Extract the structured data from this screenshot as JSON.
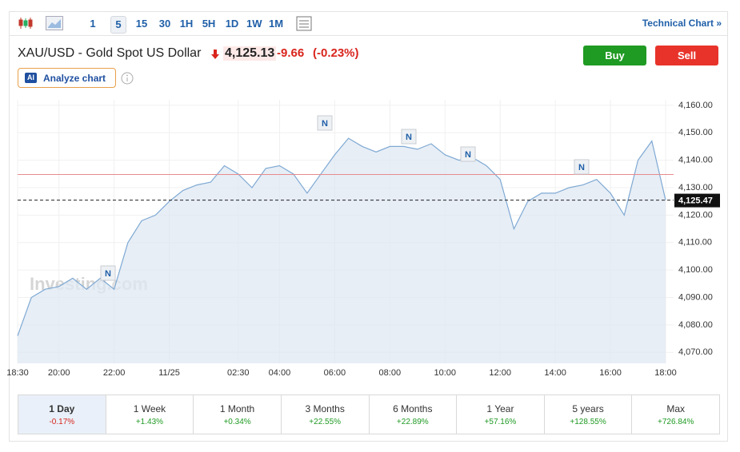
{
  "toolbar": {
    "intervals": [
      "1",
      "5",
      "15",
      "30",
      "1H",
      "5H",
      "1D",
      "1W",
      "1M"
    ],
    "active": "5",
    "link": "Technical Chart »"
  },
  "header": {
    "title": "XAU/USD - Gold Spot US Dollar",
    "price": "4,125.13",
    "change": "-9.66",
    "change_pct": "(-0.23%)",
    "buy": "Buy",
    "sell": "Sell",
    "analyze": "Analyze chart",
    "ai_badge": "AI"
  },
  "chart_data": {
    "type": "area",
    "watermark": "Investing.com",
    "annotations": [
      "N",
      "N",
      "N",
      "N",
      "N"
    ],
    "categories": [
      "18:30",
      null,
      null,
      "20:00",
      null,
      null,
      null,
      "22:00",
      null,
      null,
      null,
      "11/25",
      null,
      null,
      null,
      null,
      "02:30",
      null,
      null,
      "04:00",
      null,
      null,
      null,
      "06:00",
      null,
      null,
      null,
      "08:00",
      null,
      null,
      null,
      "10:00",
      null,
      null,
      null,
      "12:00",
      null,
      null,
      null,
      "14:00",
      null,
      null,
      null,
      "16:00",
      null,
      null,
      null,
      "18:00"
    ],
    "series": [
      {
        "name": "XAU/USD",
        "color": "#7fa9d3",
        "values": [
          4076,
          4090,
          4093,
          4094,
          4097,
          4093,
          4097,
          4093,
          4110,
          4118,
          4120,
          4125,
          4129,
          4131,
          4132,
          4138,
          4135,
          4130,
          4137,
          4138,
          4135,
          4128,
          4135,
          4142,
          4148,
          4145,
          4143,
          4145,
          4145,
          4144,
          4146,
          4142,
          4140,
          4141,
          4138,
          4133,
          4115,
          4125,
          4128,
          4128,
          4130,
          4131,
          4133,
          4128,
          4120,
          4140,
          4147,
          4125.47
        ]
      }
    ],
    "prev_close": 4134.79,
    "last_price": {
      "value": 4125.47,
      "label": "4,125.47"
    },
    "ylim": [
      4066,
      4162
    ],
    "yticks": [
      {
        "value": 4070,
        "label": "4,070.00"
      },
      {
        "value": 4080,
        "label": "4,080.00"
      },
      {
        "value": 4090,
        "label": "4,090.00"
      },
      {
        "value": 4100,
        "label": "4,100.00"
      },
      {
        "value": 4110,
        "label": "4,110.00"
      },
      {
        "value": 4120,
        "label": "4,120.00"
      },
      {
        "value": 4130,
        "label": "4,130.00"
      },
      {
        "value": 4140,
        "label": "4,140.00"
      },
      {
        "value": 4150,
        "label": "4,150.00"
      },
      {
        "value": 4160,
        "label": "4,160.00"
      }
    ],
    "grid": true
  },
  "periods": [
    {
      "name": "1 Day",
      "change": "-0.17%"
    },
    {
      "name": "1 Week",
      "change": "+1.43%"
    },
    {
      "name": "1 Month",
      "change": "+0.34%"
    },
    {
      "name": "3 Months",
      "change": "+22.55%"
    },
    {
      "name": "6 Months",
      "change": "+22.89%"
    },
    {
      "name": "1 Year",
      "change": "+57.16%"
    },
    {
      "name": "5 years",
      "change": "+128.55%"
    },
    {
      "name": "Max",
      "change": "+726.84%"
    }
  ]
}
